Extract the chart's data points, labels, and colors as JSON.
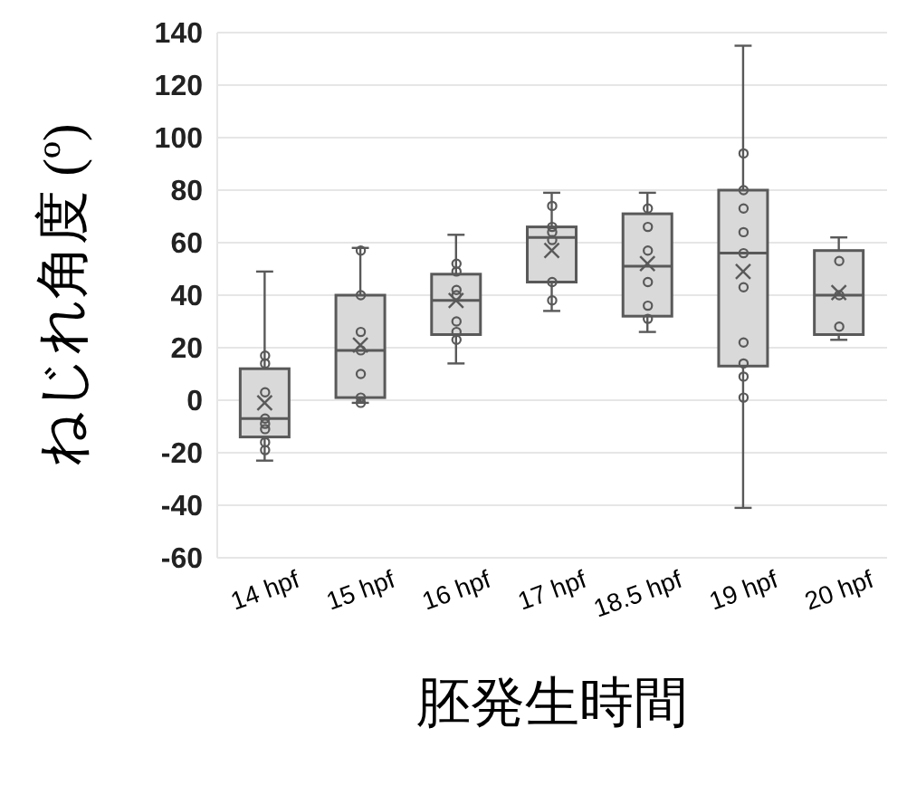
{
  "chart_data": {
    "type": "box",
    "xlabel": "胚発生時間",
    "ylabel": "ねじれ角度 (º)",
    "categories": [
      "14 hpf",
      "15 hpf",
      "16 hpf",
      "17 hpf",
      "18.5 hpf",
      "19 hpf",
      "20 hpf"
    ],
    "boxes": [
      {
        "low": -23,
        "q1": -14,
        "median": -7,
        "q3": 12,
        "high": 49,
        "mean": -1
      },
      {
        "low": -1,
        "q1": 1,
        "median": 19,
        "q3": 40,
        "high": 58,
        "mean": 21
      },
      {
        "low": 14,
        "q1": 25,
        "median": 38,
        "q3": 48,
        "high": 63,
        "mean": 38
      },
      {
        "low": 34,
        "q1": 45,
        "median": 62,
        "q3": 66,
        "high": 79,
        "mean": 57
      },
      {
        "low": 26,
        "q1": 32,
        "median": 51,
        "q3": 71,
        "high": 79,
        "mean": 52
      },
      {
        "low": -41,
        "q1": 13,
        "median": 56,
        "q3": 80,
        "high": 135,
        "mean": 49
      },
      {
        "low": 23,
        "q1": 25,
        "median": 40,
        "q3": 57,
        "high": 62,
        "mean": 41
      }
    ],
    "color": "#d9d9d9",
    "series": [
      {
        "type": "scatter",
        "color": "#595959",
        "x": [
          "14 hpf",
          "14 hpf",
          "14 hpf",
          "14 hpf",
          "14 hpf",
          "14 hpf",
          "14 hpf",
          "14 hpf",
          "15 hpf",
          "15 hpf",
          "15 hpf",
          "15 hpf",
          "15 hpf",
          "15 hpf",
          "15 hpf",
          "16 hpf",
          "16 hpf",
          "16 hpf",
          "16 hpf",
          "16 hpf",
          "16 hpf",
          "16 hpf",
          "17 hpf",
          "17 hpf",
          "17 hpf",
          "17 hpf",
          "17 hpf",
          "17 hpf",
          "18.5 hpf",
          "18.5 hpf",
          "18.5 hpf",
          "18.5 hpf",
          "18.5 hpf",
          "18.5 hpf",
          "19 hpf",
          "19 hpf",
          "19 hpf",
          "19 hpf",
          "19 hpf",
          "19 hpf",
          "19 hpf",
          "19 hpf",
          "19 hpf",
          "19 hpf",
          "20 hpf",
          "20 hpf",
          "20 hpf"
        ],
        "values": [
          17,
          14,
          3,
          -7,
          -9,
          -11,
          -16,
          -19,
          57,
          40,
          26,
          19,
          10,
          1,
          -1,
          52,
          49,
          42,
          40,
          30,
          26,
          23,
          74,
          66,
          64,
          61,
          45,
          38,
          73,
          66,
          57,
          45,
          36,
          31,
          94,
          80,
          73,
          64,
          56,
          43,
          22,
          14,
          9,
          1,
          53,
          40,
          28
        ]
      }
    ],
    "marker": "circle",
    "ylim": [
      -60,
      140
    ],
    "yticks": [
      -60,
      -40,
      -20,
      0,
      20,
      40,
      60,
      80,
      100,
      120,
      140
    ],
    "grid": "y"
  }
}
